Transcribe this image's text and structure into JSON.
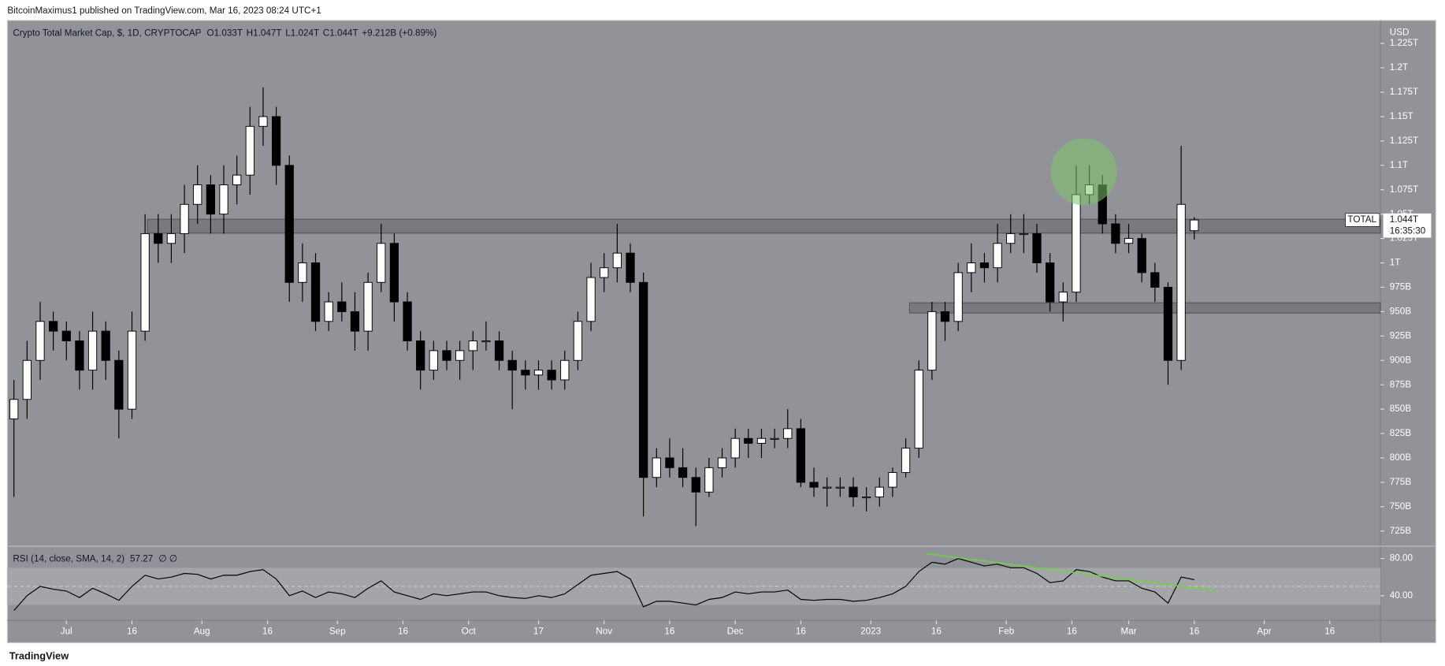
{
  "header": {
    "publisher": "BitcoinMaximus1 published on TradingView.com, Mar 16, 2023 08:24 UTC+1",
    "footer": "TradingView"
  },
  "chart_data": [
    {
      "type": "candlestick",
      "title": "Crypto Total Market Cap, $, 1D, CRYPTOCAP",
      "legend": [
        {
          "key": "O",
          "value": "1.033T"
        },
        {
          "key": "H",
          "value": "1.047T"
        },
        {
          "key": "L",
          "value": "1.024T"
        },
        {
          "key": "C",
          "value": "1.044T"
        }
      ],
      "change": "+9.212B (+0.89%)",
      "y_unit": "USD",
      "price_tag": {
        "name": "TOTAL",
        "value": 1.044,
        "value_label": "1.044T",
        "countdown": "16:35:30"
      },
      "up_color": "#ffffff",
      "down_color": "#000000",
      "x": [
        -12,
        -9,
        -6,
        -3,
        0,
        3,
        6,
        9,
        12,
        15,
        18,
        21,
        24,
        27,
        30,
        33,
        36,
        39,
        42,
        45,
        48,
        51,
        54,
        57,
        60,
        63,
        66,
        69,
        72,
        75,
        78,
        81,
        84,
        87,
        90,
        93,
        96,
        99,
        102,
        105,
        108,
        111,
        114,
        117,
        120,
        123,
        126,
        129,
        132,
        135,
        138,
        141,
        144,
        147,
        150,
        153,
        156,
        159,
        162,
        165,
        168,
        171,
        174,
        177,
        180,
        183,
        186,
        189,
        192,
        195,
        198,
        201,
        204,
        207,
        210,
        213,
        216,
        219,
        222,
        225,
        228,
        231,
        234,
        237,
        240,
        243,
        246,
        249,
        252,
        255,
        258
      ],
      "open": [
        0.84,
        0.86,
        0.9,
        0.94,
        0.93,
        0.92,
        0.89,
        0.93,
        0.9,
        0.85,
        0.93,
        1.03,
        1.02,
        1.03,
        1.06,
        1.08,
        1.05,
        1.08,
        1.09,
        1.14,
        1.15,
        1.1,
        0.98,
        1.0,
        0.94,
        0.96,
        0.95,
        0.93,
        0.98,
        1.02,
        0.96,
        0.92,
        0.89,
        0.91,
        0.9,
        0.91,
        0.92,
        0.92,
        0.9,
        0.89,
        0.885,
        0.89,
        0.88,
        0.9,
        0.94,
        0.985,
        0.995,
        1.01,
        0.98,
        0.78,
        0.8,
        0.79,
        0.78,
        0.765,
        0.79,
        0.8,
        0.82,
        0.815,
        0.82,
        0.82,
        0.83,
        0.775,
        0.77,
        0.77,
        0.77,
        0.76,
        0.76,
        0.77,
        0.785,
        0.81,
        0.89,
        0.95,
        0.94,
        0.99,
        1.0,
        0.995,
        1.02,
        1.03,
        1.03,
        1.0,
        0.96,
        0.97,
        1.07,
        1.08,
        1.04,
        1.02,
        1.025,
        0.99,
        0.975,
        0.9,
        1.033
      ],
      "high": [
        0.88,
        0.92,
        0.96,
        0.95,
        0.94,
        0.93,
        0.95,
        0.94,
        0.91,
        0.95,
        1.05,
        1.05,
        1.05,
        1.08,
        1.1,
        1.09,
        1.1,
        1.11,
        1.16,
        1.18,
        1.16,
        1.11,
        1.02,
        1.01,
        0.97,
        0.98,
        0.97,
        0.99,
        1.04,
        1.03,
        0.97,
        0.93,
        0.92,
        0.92,
        0.92,
        0.93,
        0.94,
        0.93,
        0.91,
        0.9,
        0.9,
        0.9,
        0.91,
        0.95,
        1.0,
        1.01,
        1.04,
        1.02,
        0.99,
        0.81,
        0.82,
        0.81,
        0.79,
        0.8,
        0.81,
        0.83,
        0.83,
        0.83,
        0.83,
        0.85,
        0.84,
        0.79,
        0.78,
        0.78,
        0.78,
        0.77,
        0.78,
        0.79,
        0.82,
        0.9,
        0.96,
        0.96,
        1.0,
        1.02,
        1.01,
        1.04,
        1.05,
        1.05,
        1.04,
        1.01,
        0.98,
        1.1,
        1.1,
        1.09,
        1.05,
        1.04,
        1.03,
        1.0,
        0.98,
        1.12,
        1.047
      ],
      "low": [
        0.76,
        0.84,
        0.88,
        0.91,
        0.9,
        0.87,
        0.87,
        0.88,
        0.82,
        0.84,
        0.92,
        1.0,
        1.0,
        1.01,
        1.04,
        1.03,
        1.03,
        1.06,
        1.07,
        1.12,
        1.08,
        0.96,
        0.96,
        0.93,
        0.93,
        0.94,
        0.91,
        0.91,
        0.97,
        0.94,
        0.91,
        0.87,
        0.88,
        0.89,
        0.88,
        0.89,
        0.91,
        0.89,
        0.85,
        0.87,
        0.87,
        0.87,
        0.87,
        0.89,
        0.93,
        0.97,
        0.98,
        0.97,
        0.74,
        0.77,
        0.78,
        0.77,
        0.73,
        0.76,
        0.78,
        0.79,
        0.8,
        0.8,
        0.81,
        0.81,
        0.77,
        0.76,
        0.75,
        0.76,
        0.75,
        0.745,
        0.75,
        0.76,
        0.78,
        0.8,
        0.88,
        0.92,
        0.93,
        0.97,
        0.98,
        0.98,
        1.01,
        1.01,
        0.99,
        0.95,
        0.94,
        0.96,
        1.06,
        1.03,
        1.01,
        1.01,
        0.98,
        0.96,
        0.875,
        0.89,
        1.024
      ],
      "close": [
        0.86,
        0.9,
        0.94,
        0.93,
        0.92,
        0.89,
        0.93,
        0.9,
        0.85,
        0.93,
        1.03,
        1.02,
        1.03,
        1.06,
        1.08,
        1.05,
        1.08,
        1.09,
        1.14,
        1.15,
        1.1,
        0.98,
        1.0,
        0.94,
        0.96,
        0.95,
        0.93,
        0.98,
        1.02,
        0.96,
        0.92,
        0.89,
        0.91,
        0.9,
        0.91,
        0.92,
        0.92,
        0.9,
        0.89,
        0.885,
        0.89,
        0.88,
        0.9,
        0.94,
        0.985,
        0.995,
        1.01,
        0.98,
        0.78,
        0.8,
        0.79,
        0.78,
        0.765,
        0.79,
        0.8,
        0.82,
        0.815,
        0.82,
        0.82,
        0.83,
        0.775,
        0.77,
        0.77,
        0.77,
        0.76,
        0.76,
        0.77,
        0.785,
        0.81,
        0.89,
        0.95,
        0.94,
        0.99,
        1.0,
        0.995,
        1.02,
        1.03,
        1.03,
        1.0,
        0.96,
        0.97,
        1.07,
        1.08,
        1.04,
        1.02,
        1.025,
        0.99,
        0.975,
        0.9,
        1.06,
        1.044
      ],
      "xlim": [
        -13.5,
        300.6
      ],
      "ylim": [
        0.7095,
        1.2486
      ],
      "xticks": [
        {
          "value": 0,
          "label": "Jul"
        },
        {
          "value": 15,
          "label": "16"
        },
        {
          "value": 31,
          "label": "Aug"
        },
        {
          "value": 46,
          "label": "16"
        },
        {
          "value": 62,
          "label": "Sep"
        },
        {
          "value": 77,
          "label": "16"
        },
        {
          "value": 92,
          "label": "Oct"
        },
        {
          "value": 108,
          "label": "17"
        },
        {
          "value": 123,
          "label": "Nov"
        },
        {
          "value": 138,
          "label": "16"
        },
        {
          "value": 153,
          "label": "Dec"
        },
        {
          "value": 168,
          "label": "16"
        },
        {
          "value": 184,
          "label": "2023"
        },
        {
          "value": 199,
          "label": "16"
        },
        {
          "value": 215,
          "label": "Feb"
        },
        {
          "value": 230,
          "label": "16"
        },
        {
          "value": 243,
          "label": "Mar"
        },
        {
          "value": 258,
          "label": "16"
        },
        {
          "value": 274,
          "label": "Apr"
        },
        {
          "value": 289,
          "label": "16"
        }
      ],
      "yticks": [
        {
          "value": 0.725,
          "label": "725B"
        },
        {
          "value": 0.75,
          "label": "750B"
        },
        {
          "value": 0.775,
          "label": "775B"
        },
        {
          "value": 0.8,
          "label": "800B"
        },
        {
          "value": 0.825,
          "label": "825B"
        },
        {
          "value": 0.85,
          "label": "850B"
        },
        {
          "value": 0.875,
          "label": "875B"
        },
        {
          "value": 0.9,
          "label": "900B"
        },
        {
          "value": 0.925,
          "label": "925B"
        },
        {
          "value": 0.95,
          "label": "950B"
        },
        {
          "value": 0.975,
          "label": "975B"
        },
        {
          "value": 1,
          "label": "1T"
        },
        {
          "value": 1.025,
          "label": "1.025T"
        },
        {
          "value": 1.05,
          "label": "1.05T"
        },
        {
          "value": 1.075,
          "label": "1.075T"
        },
        {
          "value": 1.1,
          "label": "1.1T"
        },
        {
          "value": 1.125,
          "label": "1.125T"
        },
        {
          "value": 1.15,
          "label": "1.15T"
        },
        {
          "value": 1.175,
          "label": "1.175T"
        },
        {
          "value": 1.2,
          "label": "1.2T"
        },
        {
          "value": 1.225,
          "label": "1.225T"
        }
      ]
    },
    {
      "type": "line",
      "title": "RSI (14, close, SMA, 14, 2)",
      "value_label": "57.27",
      "extra": "∅ ∅",
      "color": "#000000",
      "x": [
        -12,
        -9,
        -6,
        -3,
        0,
        3,
        6,
        9,
        12,
        15,
        18,
        21,
        24,
        27,
        30,
        33,
        36,
        39,
        42,
        45,
        48,
        51,
        54,
        57,
        60,
        63,
        66,
        69,
        72,
        75,
        78,
        81,
        84,
        87,
        90,
        93,
        96,
        99,
        102,
        105,
        108,
        111,
        114,
        117,
        120,
        123,
        126,
        129,
        132,
        135,
        138,
        141,
        144,
        147,
        150,
        153,
        156,
        159,
        162,
        165,
        168,
        171,
        174,
        177,
        180,
        183,
        186,
        189,
        192,
        195,
        198,
        201,
        204,
        207,
        210,
        213,
        216,
        219,
        222,
        225,
        228,
        231,
        234,
        237,
        240,
        243,
        246,
        249,
        252,
        255,
        258
      ],
      "values": [
        24,
        40,
        50,
        47,
        45,
        38,
        48,
        42,
        35,
        50,
        62,
        58,
        60,
        64,
        63,
        58,
        62,
        62,
        66,
        68,
        58,
        40,
        45,
        38,
        44,
        42,
        38,
        48,
        56,
        44,
        40,
        36,
        42,
        40,
        42,
        44,
        44,
        40,
        38,
        37,
        40,
        38,
        42,
        52,
        62,
        64,
        66,
        58,
        28,
        34,
        34,
        32,
        30,
        36,
        38,
        44,
        42,
        44,
        44,
        46,
        36,
        35,
        36,
        36,
        34,
        35,
        38,
        42,
        50,
        66,
        76,
        74,
        80,
        76,
        72,
        74,
        70,
        70,
        64,
        54,
        56,
        68,
        66,
        60,
        56,
        56,
        48,
        44,
        32,
        60,
        57.27
      ],
      "band": [
        30,
        70
      ],
      "midline": 50,
      "xlim": [
        -13.5,
        300.6
      ],
      "ylim": [
        13.3,
        93.3
      ],
      "yticks": [
        {
          "value": 80,
          "label": "80.00"
        },
        {
          "value": 40,
          "label": "40.00"
        }
      ]
    }
  ]
}
